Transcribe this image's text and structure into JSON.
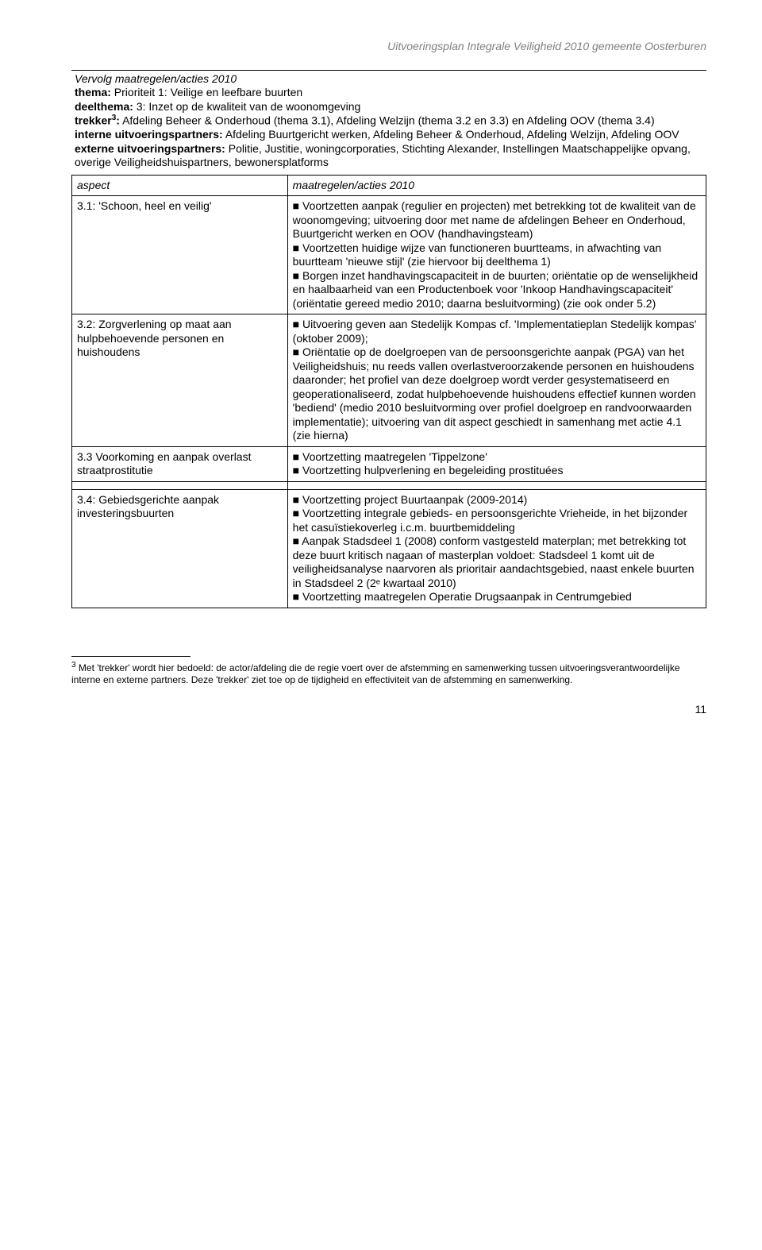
{
  "docHeader": "Uitvoeringsplan Integrale Veiligheid 2010 gemeente Oosterburen",
  "intro": {
    "continue": "Vervolg maatregelen/acties 2010",
    "themaLabel": "thema:",
    "thema": "Prioriteit 1: Veilige en leefbare buurten",
    "deelthemaLabel": "deelthema:",
    "deelthema": "3: Inzet op de kwaliteit van de woonomgeving",
    "trekkerLabel": "trekker",
    "trekkerSup": "3",
    "trekkerColon": ":",
    "trekker": "Afdeling Beheer & Onderhoud (thema 3.1), Afdeling Welzijn (thema 3.2 en 3.3) en Afdeling OOV (thema 3.4)",
    "interneLabel": "interne uitvoeringspartners:",
    "interne": "Afdeling Buurtgericht werken, Afdeling Beheer & Onderhoud, Afdeling Welzijn, Afdeling OOV",
    "externeLabel": "externe uitvoeringspartners:",
    "externe": "Politie, Justitie, woningcorporaties, Stichting Alexander, Instellingen Maatschappelijke opvang, overige Veiligheidshuispartners, bewonersplatforms"
  },
  "tableHeader": {
    "aspect": "aspect",
    "actions": "maatregelen/acties 2010"
  },
  "rows": [
    {
      "aspect": "3.1: 'Schoon, heel en veilig'",
      "actions": "■ Voortzetten aanpak (regulier en projecten) met betrekking tot de kwaliteit van de woonomgeving; uitvoering door met name de afdelingen Beheer en Onderhoud, Buurtgericht werken en OOV (handhavingsteam)\n■ Voortzetten huidige wijze van functioneren buurtteams, in afwachting van buurtteam 'nieuwe stijl' (zie hiervoor bij deelthema 1)\n■ Borgen inzet handhavingscapaciteit in de buurten; oriëntatie op de wenselijkheid en haalbaarheid van een Productenboek voor 'Inkoop Handhavingscapaciteit' (oriëntatie gereed medio 2010; daarna besluitvorming) (zie ook onder 5.2)"
    },
    {
      "aspect": "3.2: Zorgverlening op maat aan hulpbehoevende personen en huishoudens",
      "actions": "■ Uitvoering geven aan Stedelijk Kompas cf. 'Implementatieplan Stedelijk kompas' (oktober 2009);\n■ Oriëntatie op de doelgroepen van de persoonsgerichte aanpak (PGA) van het Veiligheidshuis; nu reeds vallen overlastveroorzakende personen en huishoudens daaronder; het profiel van deze doelgroep wordt verder gesystematiseerd en geoperationaliseerd, zodat hulpbehoevende huishoudens effectief kunnen worden 'bediend' (medio 2010 besluitvorming over profiel doelgroep en randvoorwaarden implementatie); uitvoering van dit aspect geschiedt in samenhang met actie 4.1 (zie hierna)"
    },
    {
      "aspect": "3.3 Voorkoming en aanpak overlast straatprostitutie",
      "actions": "■ Voortzetting maatregelen 'Tippelzone'\n■ Voortzetting hulpverlening en begeleiding prostituées"
    },
    {
      "aspect": "3.4: Gebiedsgerichte aanpak investeringsbuurten",
      "actions": "■ Voortzetting project Buurtaanpak (2009-2014)\n■ Voortzetting integrale gebieds- en persoonsgerichte Vrieheide, in het bijzonder het casuïstiekoverleg i.c.m. buurtbemiddeling\n■ Aanpak Stadsdeel 1 (2008) conform vastgesteld materplan; met betrekking tot deze buurt kritisch nagaan of masterplan voldoet: Stadsdeel 1 komt uit de veiligheidsanalyse naarvoren als prioritair  aandachtsgebied, naast enkele buurten in Stadsdeel 2 (2ᵉ kwartaal 2010)\n■ Voortzetting maatregelen Operatie Drugsaanpak in Centrumgebied"
    }
  ],
  "footnote": {
    "num": "3",
    "text": "Met 'trekker' wordt hier bedoeld: de actor/afdeling die de regie voert over de afstemming en samenwerking tussen uitvoeringsverantwoordelijke interne en externe partners. Deze 'trekker' ziet toe op de tijdigheid en effectiviteit van de afstemming en samenwerking."
  },
  "pageNum": "11"
}
